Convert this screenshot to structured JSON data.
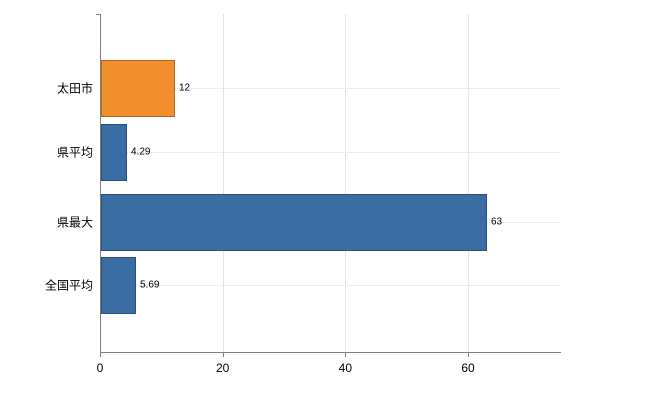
{
  "chart_data": {
    "type": "bar",
    "orientation": "horizontal",
    "title": "",
    "xlabel": "",
    "ylabel": "",
    "categories": [
      "太田市",
      "県平均",
      "県最大",
      "全国平均"
    ],
    "values": [
      12,
      4.29,
      63,
      5.69
    ],
    "value_labels": [
      "12",
      "4.29",
      "63",
      "5.69"
    ],
    "bar_colors": [
      "#f28e2c",
      "#3a6da3",
      "#3a6da3",
      "#3a6da3"
    ],
    "xticks": [
      0,
      20,
      40,
      60
    ],
    "xtick_labels": [
      "0",
      "20",
      "40",
      "60"
    ],
    "xlim": [
      0,
      75
    ],
    "grid": "vertical-solid-light and horizontal-dotted per category",
    "legend": "none"
  },
  "colors": {
    "accent_orange": "#f28e2c",
    "accent_blue": "#3a6da3",
    "axis": "#808080",
    "grid": "#e3e3e3",
    "text": "#000000",
    "background": "#ffffff"
  }
}
